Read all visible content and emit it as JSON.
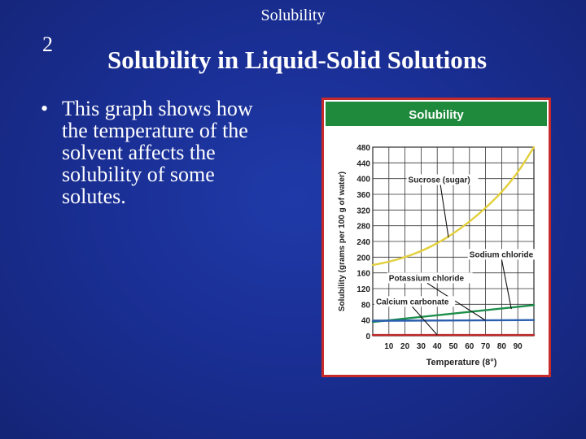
{
  "slide": {
    "header": "Solubility",
    "number": "2",
    "title": "Solubility in Liquid-Solid Solutions",
    "bullet_marker": "•",
    "bullet_lines": [
      "This graph shows how",
      "the temperature of the",
      "solvent affects the",
      "solubility of some",
      "solutes."
    ]
  },
  "colors": {
    "chart_header": "#1f8a3c",
    "frame": "#c62a2a",
    "sucrose": "#e3cf3a",
    "sodium_chloride": "#1d8f4c",
    "potassium_chloride": "#2a5fb0",
    "calcium_carbonate": "#c02828"
  },
  "chart_data": {
    "type": "line",
    "title": "Solubility",
    "xlabel": "Temperature (8°)",
    "ylabel": "Solubility (grams per 100 g of water)",
    "xlim": [
      0,
      100
    ],
    "ylim": [
      0,
      480
    ],
    "x_ticks": [
      10,
      20,
      30,
      40,
      50,
      60,
      70,
      80,
      90
    ],
    "y_ticks": [
      0,
      40,
      80,
      120,
      160,
      200,
      240,
      280,
      320,
      360,
      400,
      440,
      480
    ],
    "grid": true,
    "series": [
      {
        "name": "Sucrose (sugar)",
        "color": "#e3cf3a",
        "x": [
          0,
          10,
          20,
          30,
          40,
          50,
          60,
          70,
          80,
          90,
          100
        ],
        "y": [
          180,
          188,
          200,
          215,
          235,
          260,
          290,
          325,
          365,
          415,
          480
        ]
      },
      {
        "name": "Sodium chloride",
        "color": "#1d8f4c",
        "x": [
          0,
          100
        ],
        "y": [
          35,
          78
        ]
      },
      {
        "name": "Potassium chloride",
        "color": "#2a5fb0",
        "x": [
          0,
          100
        ],
        "y": [
          38,
          40
        ]
      },
      {
        "name": "Calcium carbonate",
        "color": "#c02828",
        "x": [
          0,
          100
        ],
        "y": [
          2,
          2
        ]
      }
    ],
    "annotations": [
      {
        "text": "Sucrose (sugar)",
        "series": 0,
        "label_x": 22,
        "label_y": 390,
        "arrow_x": 47,
        "arrow_y": 250
      },
      {
        "text": "Sodium chloride",
        "series": 1,
        "label_x": 60,
        "label_y": 200,
        "arrow_x": 86,
        "arrow_y": 68
      },
      {
        "text": "Potassium chloride",
        "series": 2,
        "label_x": 10,
        "label_y": 140,
        "arrow_x": 70,
        "arrow_y": 39
      },
      {
        "text": "Calcium carbonate",
        "series": 3,
        "label_x": 2,
        "label_y": 80,
        "arrow_x": 40,
        "arrow_y": 2
      }
    ]
  }
}
